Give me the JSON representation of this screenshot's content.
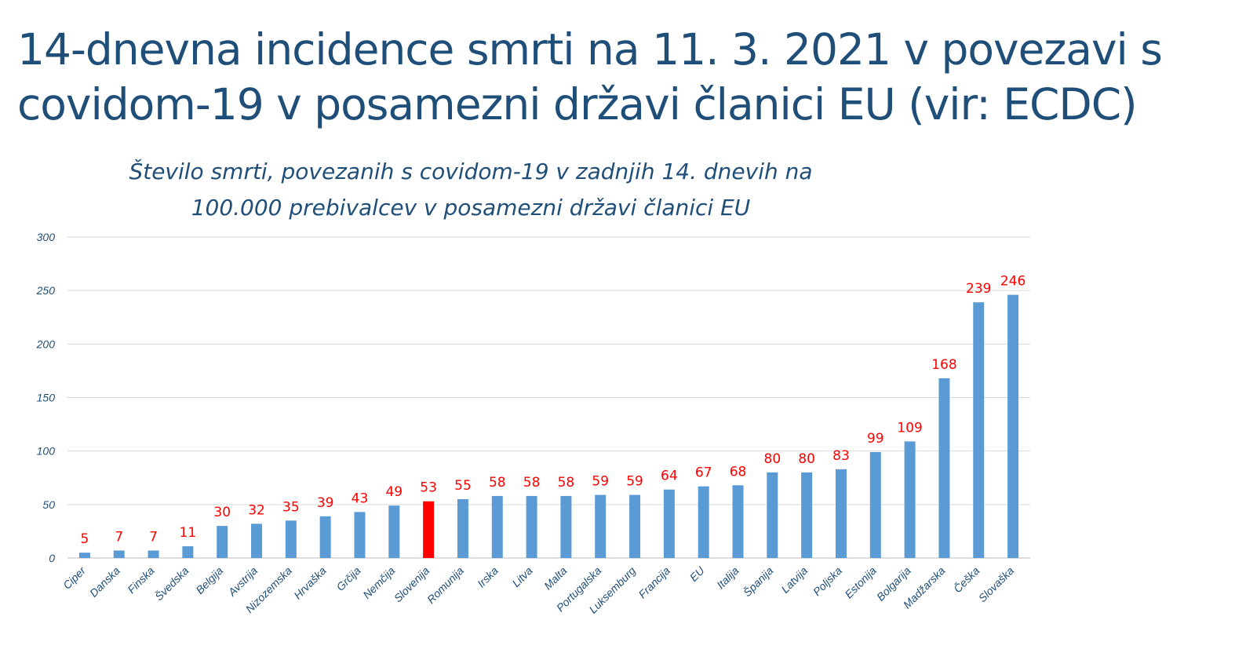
{
  "slide": {
    "title_line1": "14-dnevna incidence smrti na 11. 3. 2021 v  povezavi s",
    "title_line2": "covidom-19 v posamezni državi članici EU (vir: ECDC)"
  },
  "colors": {
    "bar": "#5b9bd5",
    "highlight_bar": "#ff0000",
    "data_label": "#ff0000",
    "axis_text": "#1f4e79",
    "grid": "#d9d9d9",
    "title": "#1f4e79"
  },
  "chart_data": {
    "type": "bar",
    "title_line1": "Število smrti, povezanih s covidom-19 v zadnjih 14. dnevih na",
    "title_line2": "100.000 prebivalcev v posamezni državi članici EU",
    "xlabel": "",
    "ylabel": "",
    "ylim": [
      0,
      300
    ],
    "yticks": [
      0,
      50,
      100,
      150,
      200,
      250,
      300
    ],
    "grid": true,
    "highlight": "Slovenija",
    "categories": [
      "Ciper",
      "Danska",
      "Finska",
      "Švedska",
      "Belgija",
      "Avstrija",
      "Nizozemska",
      "Hrvaška",
      "Grčija",
      "Nemčija",
      "Slovenija",
      "Romunija",
      "Irska",
      "Litva",
      "Malta",
      "Portugalska",
      "Luksemburg",
      "Francija",
      "EU",
      "Italija",
      "Španija",
      "Latvija",
      "Poljska",
      "Estonija",
      "Bolgarija",
      "Madžarska",
      "Češka",
      "Slovaška"
    ],
    "values": [
      5,
      7,
      7,
      11,
      30,
      32,
      35,
      39,
      43,
      49,
      53,
      55,
      58,
      58,
      58,
      59,
      59,
      64,
      67,
      68,
      80,
      80,
      83,
      99,
      109,
      168,
      239,
      246
    ]
  }
}
